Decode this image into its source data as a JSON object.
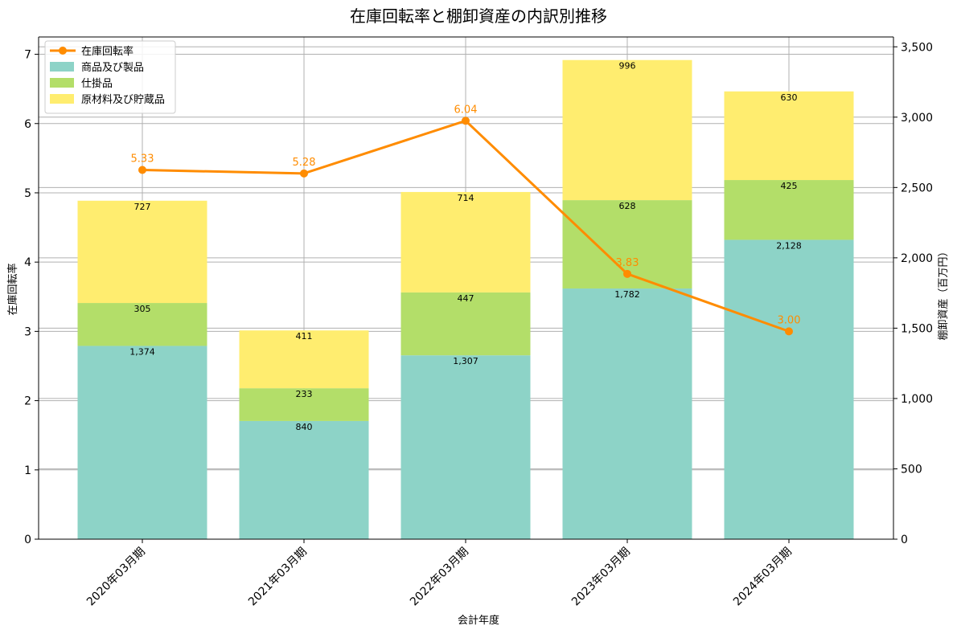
{
  "chart_data": {
    "type": "bar+line",
    "title": "在庫回転率と棚卸資産の内訳別推移",
    "xlabel": "会計年度",
    "ylabel_left": "在庫回転率",
    "ylabel_right": "棚卸資産（百万円）",
    "categories": [
      "2020年03月期",
      "2021年03月期",
      "2022年03月期",
      "2023年03月期",
      "2024年03月期"
    ],
    "bar_series": [
      {
        "name": "商品及び製品",
        "color": "#8dd3c7",
        "values": [
          1374,
          840,
          1307,
          1782,
          2128
        ],
        "labels": [
          "1,374",
          "840",
          "1,307",
          "1,782",
          "2,128"
        ]
      },
      {
        "name": "仕掛品",
        "color": "#b3de69",
        "values": [
          305,
          233,
          447,
          628,
          425
        ],
        "labels": [
          "305",
          "233",
          "447",
          "628",
          "425"
        ]
      },
      {
        "name": "原材料及び貯蔵品",
        "color": "#ffed6f",
        "values": [
          727,
          411,
          714,
          996,
          630
        ],
        "labels": [
          "727",
          "411",
          "714",
          "996",
          "630"
        ]
      }
    ],
    "line_series": {
      "name": "在庫回転率",
      "color": "#ff8c00",
      "values": [
        5.33,
        5.28,
        6.04,
        3.83,
        3.0
      ],
      "labels": [
        "5.33",
        "5.28",
        "6.04",
        "3.83",
        "3.00"
      ]
    },
    "ylim_left": [
      0,
      7.25
    ],
    "ylim_right": [
      0,
      3570
    ],
    "left_ticks": [
      0,
      1,
      2,
      3,
      4,
      5,
      6,
      7
    ],
    "left_tick_labels": [
      "0",
      "1",
      "2",
      "3",
      "4",
      "5",
      "6",
      "7"
    ],
    "right_ticks": [
      0,
      500,
      1000,
      1500,
      2000,
      2500,
      3000,
      3500
    ],
    "right_tick_labels": [
      "0",
      "500",
      "1,000",
      "1,500",
      "2,000",
      "2,500",
      "3,000",
      "3,500"
    ],
    "grid": true,
    "legend_position": "top-left"
  }
}
